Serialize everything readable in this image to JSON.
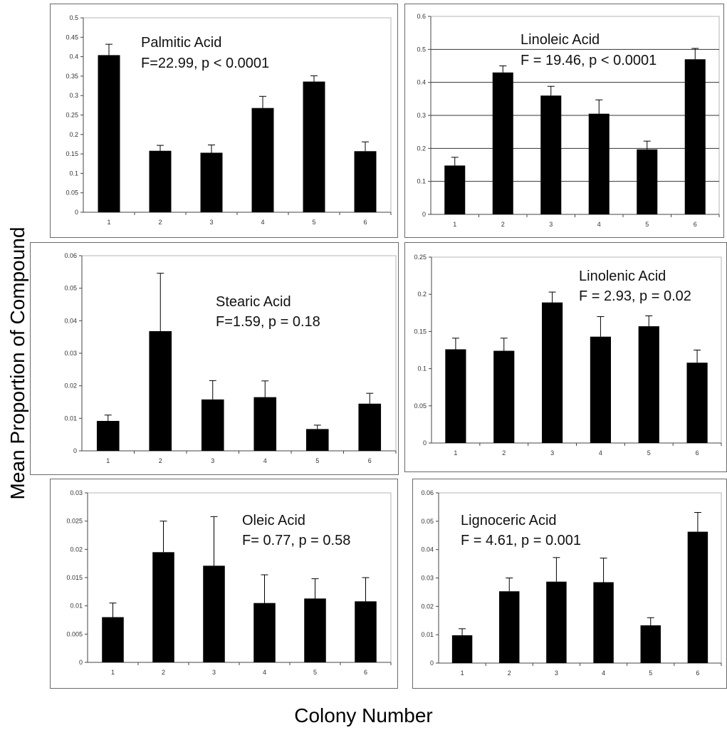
{
  "axis_labels": {
    "y": "Mean Proportion of Compound",
    "x": "Colony Number"
  },
  "chart_data": [
    {
      "type": "bar",
      "title": "Palmitic Acid",
      "subtitle": "F=22.99, p < 0.0001",
      "categories": [
        "1",
        "2",
        "3",
        "4",
        "5",
        "6"
      ],
      "values": [
        0.404,
        0.158,
        0.153,
        0.268,
        0.336,
        0.157
      ],
      "errors": [
        0.028,
        0.014,
        0.02,
        0.03,
        0.015,
        0.024
      ],
      "ylim": [
        0,
        0.5
      ],
      "yticks": [
        "0",
        "0.05",
        "0.1",
        "0.15",
        "0.2",
        "0.25",
        "0.3",
        "0.35",
        "0.4",
        "0.45",
        "0.5"
      ],
      "grid": false
    },
    {
      "type": "bar",
      "title": "Linoleic Acid",
      "subtitle": "F = 19.46, p < 0.0001",
      "categories": [
        "1",
        "2",
        "3",
        "4",
        "5",
        "6"
      ],
      "values": [
        0.148,
        0.43,
        0.36,
        0.305,
        0.197,
        0.47
      ],
      "errors": [
        0.025,
        0.02,
        0.028,
        0.042,
        0.025,
        0.033
      ],
      "ylim": [
        0,
        0.6
      ],
      "yticks": [
        "0",
        "0.1",
        "0.2",
        "0.3",
        "0.4",
        "0.5",
        "0.6"
      ],
      "grid": true
    },
    {
      "type": "bar",
      "title": "Stearic Acid",
      "subtitle": "F=1.59, p = 0.18",
      "categories": [
        "1",
        "2",
        "3",
        "4",
        "5",
        "6"
      ],
      "values": [
        0.0092,
        0.0368,
        0.0158,
        0.0165,
        0.0067,
        0.0145
      ],
      "errors": [
        0.0018,
        0.0178,
        0.0058,
        0.005,
        0.0012,
        0.0032
      ],
      "ylim": [
        0,
        0.06
      ],
      "yticks": [
        "0",
        "0.01",
        "0.02",
        "0.03",
        "0.04",
        "0.05",
        "0.06"
      ],
      "grid": false
    },
    {
      "type": "bar",
      "title": "Linolenic Acid",
      "subtitle": "F = 2.93, p = 0.02",
      "categories": [
        "1",
        "2",
        "3",
        "4",
        "5",
        "6"
      ],
      "values": [
        0.126,
        0.124,
        0.189,
        0.143,
        0.157,
        0.108
      ],
      "errors": [
        0.015,
        0.017,
        0.014,
        0.027,
        0.014,
        0.017
      ],
      "ylim": [
        0,
        0.25
      ],
      "yticks": [
        "0",
        "0.05",
        "0.1",
        "0.15",
        "0.2",
        "0.25"
      ],
      "grid": false
    },
    {
      "type": "bar",
      "title": "Oleic Acid",
      "subtitle": "F= 0.77, p = 0.58",
      "categories": [
        "1",
        "2",
        "3",
        "4",
        "5",
        "6"
      ],
      "values": [
        0.008,
        0.0195,
        0.0171,
        0.0105,
        0.0113,
        0.0108
      ],
      "errors": [
        0.0025,
        0.0055,
        0.0087,
        0.005,
        0.0035,
        0.0042
      ],
      "ylim": [
        0,
        0.03
      ],
      "yticks": [
        "0",
        "0.005",
        "0.01",
        "0.015",
        "0.02",
        "0.025",
        "0.03"
      ],
      "grid": false
    },
    {
      "type": "bar",
      "title": "Lignoceric Acid",
      "subtitle": "F = 4.61, p = 0.001",
      "categories": [
        "1",
        "2",
        "3",
        "4",
        "5",
        "6"
      ],
      "values": [
        0.0098,
        0.0253,
        0.0287,
        0.0285,
        0.0133,
        0.0463
      ],
      "errors": [
        0.0023,
        0.0047,
        0.0085,
        0.0085,
        0.0027,
        0.0068
      ],
      "ylim": [
        0,
        0.06
      ],
      "yticks": [
        "0",
        "0.01",
        "0.02",
        "0.03",
        "0.04",
        "0.05",
        "0.06"
      ],
      "grid": false
    }
  ]
}
